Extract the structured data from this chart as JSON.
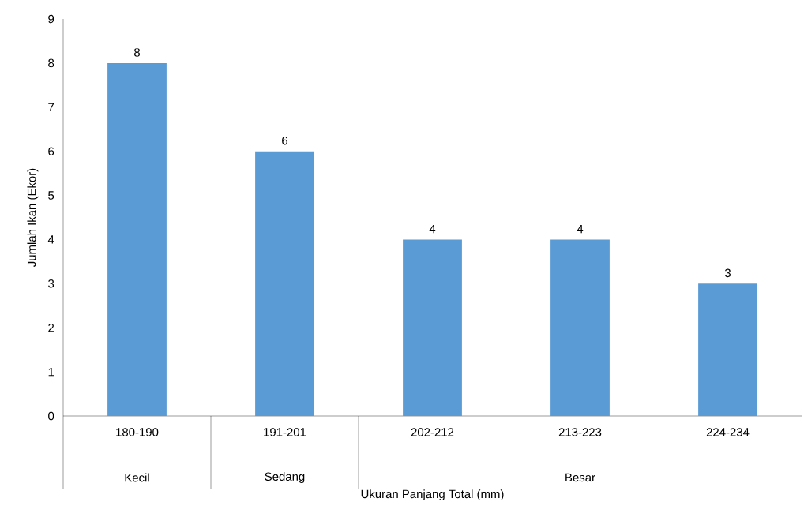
{
  "chart_data": {
    "type": "bar",
    "xlabel": "Ukuran Panjang Total (mm)",
    "ylabel": "Jumlah Ikan (Ekor)",
    "categories": [
      "180-190",
      "191-201",
      "202-212",
      "213-223",
      "224-234"
    ],
    "values": [
      8,
      6,
      4,
      4,
      3
    ],
    "color": "#5b9bd5",
    "data_labels": true,
    "grid": false,
    "ylim": [
      0,
      9
    ],
    "yticks": [
      0,
      1,
      2,
      3,
      4,
      5,
      6,
      7,
      8,
      9
    ],
    "annotations": [
      "Kecil",
      "Sedang",
      "Besar"
    ]
  }
}
